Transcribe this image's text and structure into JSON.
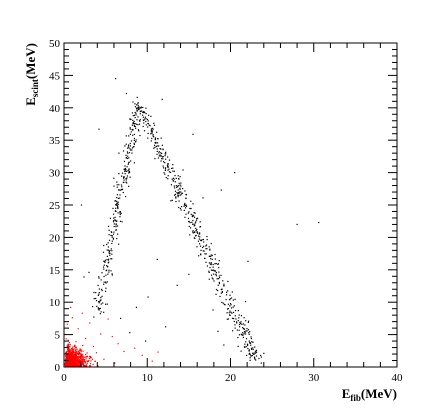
{
  "chart_data": {
    "type": "scatter",
    "xlabel": {
      "main": "E",
      "sub": "fib",
      "unit": "(MeV)"
    },
    "ylabel": {
      "main": "E",
      "sub": "scint",
      "unit": "(MeV)"
    },
    "xlim": [
      0,
      40
    ],
    "ylim": [
      0,
      50
    ],
    "x_ticks": [
      0,
      10,
      20,
      30,
      40
    ],
    "y_ticks": [
      0,
      5,
      10,
      15,
      20,
      25,
      30,
      35,
      40,
      45,
      50
    ],
    "x_minor_step": 2,
    "y_minor_step": 1,
    "grid": false,
    "series": [
      {
        "color": "#000000",
        "bands": [
          {
            "x": [
              4.0,
              9.0
            ],
            "y": [
              8.5,
              40.5
            ],
            "count": 300,
            "spread": 0.35
          },
          {
            "x": [
              9.0,
              23.0
            ],
            "y": [
              40.5,
              1.0
            ],
            "count": 500,
            "spread": 0.45
          }
        ],
        "points": [
          [
            6.2,
            44.5
          ],
          [
            7.5,
            42.2
          ],
          [
            8.8,
            41.6
          ],
          [
            11.8,
            41.3
          ],
          [
            4.2,
            36.7
          ],
          [
            15.5,
            35.9
          ],
          [
            6.6,
            33.0
          ],
          [
            14.3,
            30.4
          ],
          [
            20.5,
            30.0
          ],
          [
            18.9,
            27.3
          ],
          [
            7.4,
            26.3
          ],
          [
            16.7,
            26.1
          ],
          [
            28.0,
            22.0
          ],
          [
            30.6,
            22.3
          ],
          [
            2.1,
            25.0
          ],
          [
            16.5,
            19.5
          ],
          [
            22.1,
            16.3
          ],
          [
            11.2,
            16.6
          ],
          [
            3.0,
            14.6
          ],
          [
            21.8,
            10.1
          ],
          [
            10.1,
            10.8
          ],
          [
            8.7,
            9.2
          ],
          [
            6.8,
            7.5
          ],
          [
            2.4,
            13.9
          ],
          [
            5.2,
            9.7
          ],
          [
            13.6,
            12.6
          ],
          [
            17.9,
            8.8
          ],
          [
            12.2,
            6.2
          ],
          [
            9.8,
            4.0
          ],
          [
            18.5,
            5.5
          ],
          [
            19.2,
            3.4
          ],
          [
            7.9,
            5.3
          ],
          [
            3.6,
            11.5
          ],
          [
            15.0,
            14.3
          ],
          [
            24.0,
            2.1
          ]
        ]
      },
      {
        "color": "#ff0000",
        "cluster": {
          "center": [
            0.6,
            1.2
          ],
          "sx": 1.2,
          "sy": 1.6,
          "count": 900
        },
        "points": [
          [
            1.0,
            7.6
          ],
          [
            2.2,
            8.3
          ],
          [
            3.1,
            6.8
          ],
          [
            0.8,
            9.2
          ],
          [
            4.4,
            5.1
          ],
          [
            5.8,
            4.7
          ],
          [
            6.5,
            3.6
          ],
          [
            7.2,
            2.4
          ],
          [
            8.5,
            2.9
          ],
          [
            3.9,
            2.2
          ],
          [
            4.8,
            1.2
          ],
          [
            2.6,
            4.4
          ],
          [
            1.7,
            5.9
          ],
          [
            0.4,
            6.6
          ],
          [
            5.3,
            7.4
          ],
          [
            9.4,
            1.8
          ],
          [
            10.6,
            0.9
          ],
          [
            6.1,
            0.6
          ],
          [
            11.3,
            2.3
          ],
          [
            3.5,
            0.4
          ]
        ]
      }
    ]
  }
}
